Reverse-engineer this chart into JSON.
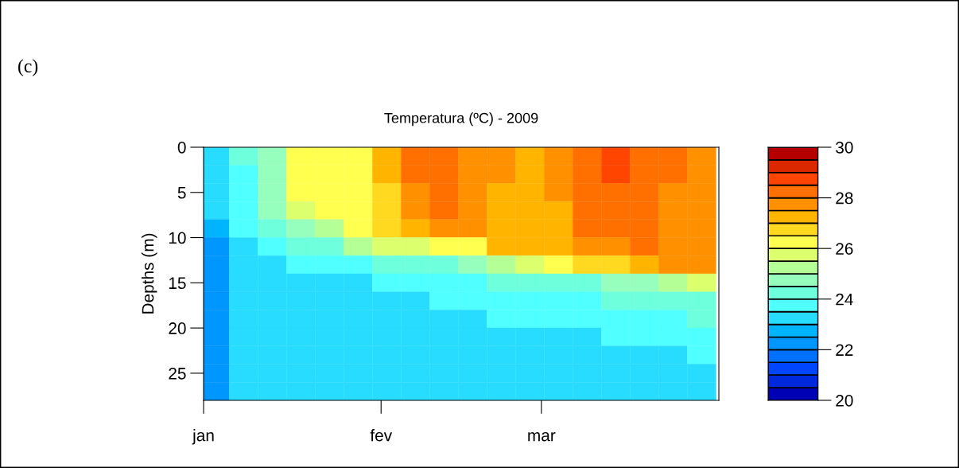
{
  "chart_data": {
    "type": "heatmap",
    "title": "Temperatura (ºC) - 2009",
    "ylabel": "Depths (m)",
    "annotations": [
      "(c)"
    ],
    "x": [
      "2009-01-03",
      "2009-01-08",
      "2009-01-13",
      "2009-01-18",
      "2009-01-23",
      "2009-01-28",
      "2009-02-02",
      "2009-02-07",
      "2009-02-12",
      "2009-02-17",
      "2009-02-22",
      "2009-02-27",
      "2009-03-04",
      "2009-03-09",
      "2009-03-14",
      "2009-03-19",
      "2009-03-24",
      "2009-03-29"
    ],
    "y": [
      1,
      3,
      5,
      7,
      9,
      11,
      13,
      15,
      17,
      19,
      21,
      23,
      25,
      27
    ],
    "cells": [
      [
        23.25,
        24.25,
        24.75,
        26.25,
        26.25,
        26.25,
        27.25,
        28.25,
        28.25,
        27.75,
        27.75,
        27.25,
        27.75,
        28.25,
        28.75,
        28.25,
        28.25,
        27.75
      ],
      [
        23.25,
        23.75,
        24.75,
        26.25,
        26.25,
        26.25,
        27.25,
        28.25,
        28.25,
        27.75,
        27.75,
        27.25,
        27.75,
        28.25,
        28.75,
        28.25,
        28.25,
        27.75
      ],
      [
        23.25,
        23.75,
        24.75,
        26.25,
        26.25,
        26.25,
        26.75,
        27.75,
        28.25,
        27.75,
        27.25,
        27.25,
        27.75,
        28.25,
        28.25,
        28.25,
        27.75,
        27.75
      ],
      [
        23.25,
        23.75,
        24.75,
        25.75,
        26.25,
        26.25,
        26.75,
        27.75,
        28.25,
        27.75,
        27.25,
        27.25,
        27.25,
        28.25,
        28.25,
        28.25,
        27.75,
        27.75
      ],
      [
        22.75,
        23.75,
        24.25,
        24.75,
        25.25,
        26.25,
        26.75,
        27.25,
        27.75,
        27.75,
        27.25,
        27.25,
        27.25,
        28.25,
        28.25,
        28.25,
        27.75,
        27.75
      ],
      [
        22.25,
        23.25,
        23.75,
        24.25,
        24.25,
        25.25,
        25.75,
        25.75,
        26.25,
        26.25,
        27.25,
        27.25,
        27.25,
        27.75,
        27.75,
        28.25,
        27.75,
        27.75
      ],
      [
        22.25,
        23.25,
        23.25,
        23.75,
        23.75,
        23.75,
        24.25,
        24.25,
        24.25,
        24.75,
        25.25,
        25.75,
        26.25,
        26.75,
        26.75,
        27.25,
        27.75,
        27.75
      ],
      [
        22.25,
        23.25,
        23.25,
        23.25,
        23.25,
        23.25,
        23.75,
        23.75,
        23.75,
        23.75,
        24.25,
        24.25,
        24.25,
        24.25,
        24.75,
        24.75,
        25.25,
        25.75
      ],
      [
        22.25,
        23.25,
        23.25,
        23.25,
        23.25,
        23.25,
        23.25,
        23.25,
        23.75,
        23.75,
        23.75,
        23.75,
        23.75,
        23.75,
        24.25,
        24.25,
        24.25,
        24.25
      ],
      [
        22.25,
        23.25,
        23.25,
        23.25,
        23.25,
        23.25,
        23.25,
        23.25,
        23.25,
        23.25,
        23.75,
        23.75,
        23.75,
        23.75,
        23.75,
        23.75,
        23.75,
        24.25
      ],
      [
        22.25,
        23.25,
        23.25,
        23.25,
        23.25,
        23.25,
        23.25,
        23.25,
        23.25,
        23.25,
        23.25,
        23.25,
        23.25,
        23.25,
        23.75,
        23.75,
        23.75,
        23.75
      ],
      [
        22.25,
        23.25,
        23.25,
        23.25,
        23.25,
        23.25,
        23.25,
        23.25,
        23.25,
        23.25,
        23.25,
        23.25,
        23.25,
        23.25,
        23.25,
        23.25,
        23.25,
        23.75
      ],
      [
        22.25,
        23.25,
        23.25,
        23.25,
        23.25,
        23.25,
        23.25,
        23.25,
        23.25,
        23.25,
        23.25,
        23.25,
        23.25,
        23.25,
        23.25,
        23.25,
        23.25,
        23.25
      ],
      [
        22.25,
        23.25,
        23.25,
        23.25,
        23.25,
        23.25,
        23.25,
        23.25,
        23.25,
        23.25,
        23.25,
        23.25,
        23.25,
        23.25,
        23.25,
        23.25,
        23.25,
        23.25
      ]
    ],
    "colors": [
      "#0000b4",
      "#0028dc",
      "#0046ff",
      "#0070ff",
      "#0096ff",
      "#00b4ff",
      "#28dcff",
      "#50ffff",
      "#6effdc",
      "#96ffbe",
      "#b4ff96",
      "#dcff6e",
      "#ffff50",
      "#ffd820",
      "#ffb400",
      "#ff9000",
      "#ff7000",
      "#ff4500",
      "#dc2800",
      "#b40000"
    ],
    "clim": [
      20,
      30
    ],
    "cticks": [
      20,
      22,
      24,
      26,
      28,
      30
    ],
    "xlim": [
      "2009-01-01",
      "2009-04-01"
    ],
    "xticks": [
      {
        "value": "2009-01-01",
        "label": "jan"
      },
      {
        "value": "2009-02-01",
        "label": "fev"
      },
      {
        "value": "2009-03-01",
        "label": "mar"
      }
    ],
    "ylim": [
      28,
      0
    ],
    "yticks": [
      0,
      5,
      10,
      15,
      20,
      25
    ]
  }
}
